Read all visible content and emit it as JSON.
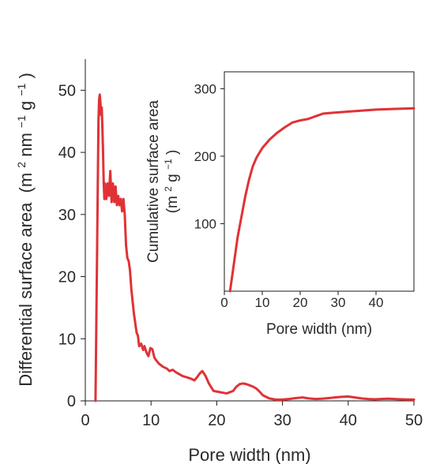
{
  "chart_data": [
    {
      "type": "line",
      "xlabel": "Pore width (nm)",
      "ylabel_lines": [
        "Differential surface area",
        "(m",
        "2",
        " nm",
        "−1",
        " g",
        "−1",
        ")"
      ],
      "xlim": [
        0,
        50
      ],
      "ylim": [
        0,
        55
      ],
      "xticks": [
        0,
        10,
        20,
        30,
        40,
        50
      ],
      "yticks": [
        0,
        10,
        20,
        30,
        40,
        50
      ],
      "grid": false,
      "line_color": "#e03236",
      "series": [
        {
          "x": [
            1.55,
            1.6,
            1.8,
            2.0,
            2.1,
            2.2,
            2.3,
            2.4,
            2.5,
            2.6,
            2.7,
            2.8,
            2.9,
            3.0,
            3.2,
            3.4,
            3.6,
            3.8,
            4.0,
            4.2,
            4.4,
            4.6,
            4.8,
            5.0,
            5.2,
            5.4,
            5.6,
            5.8,
            6.0,
            6.2,
            6.4,
            6.6,
            6.8,
            7.0,
            7.2,
            7.4,
            7.6,
            7.8,
            8.0,
            8.2,
            8.5,
            8.8,
            9.0,
            9.3,
            9.6,
            9.9,
            10.2,
            10.5,
            10.8,
            11.2,
            11.8,
            12.4,
            12.8,
            13.3,
            13.8,
            14.3,
            14.8,
            15.4,
            16.0,
            16.6,
            17.0,
            17.4,
            17.8,
            18.3,
            18.8,
            19.5,
            20.5,
            21.5,
            22.5,
            23.0,
            23.5,
            24.0,
            24.5,
            25.0,
            25.5,
            26.0,
            26.5,
            27.0,
            28.0,
            29.0,
            30.0,
            31.0,
            32.0,
            33.0,
            34.0,
            35.0,
            36.0,
            37.0,
            38.0,
            39.0,
            40.0,
            41.0,
            42.0,
            43.0,
            44.0,
            45.0,
            46.0,
            47.0,
            48.0,
            49.0,
            50.0
          ],
          "y": [
            0,
            5,
            25,
            45,
            48.5,
            49.3,
            48,
            46,
            47.2,
            44,
            40,
            35,
            32.5,
            35,
            32.5,
            35,
            33,
            37,
            32,
            35,
            32,
            34.5,
            31.5,
            33,
            31.5,
            32.5,
            30.5,
            32.5,
            30,
            25,
            23,
            22.5,
            21,
            18,
            16,
            14,
            12.5,
            11,
            10.5,
            8.8,
            9.2,
            8.2,
            8.8,
            7.8,
            7.2,
            8.5,
            8.3,
            7.0,
            6.5,
            6.0,
            5.5,
            5.2,
            4.8,
            5.0,
            4.6,
            4.3,
            4.0,
            3.8,
            3.6,
            3.3,
            3.8,
            4.4,
            4.8,
            4.0,
            2.8,
            1.6,
            1.4,
            1.2,
            1.6,
            2.3,
            2.7,
            2.8,
            2.7,
            2.5,
            2.3,
            2.0,
            1.5,
            0.9,
            0.4,
            0.2,
            0.2,
            0.3,
            0.45,
            0.55,
            0.4,
            0.3,
            0.35,
            0.45,
            0.55,
            0.65,
            0.7,
            0.55,
            0.4,
            0.3,
            0.25,
            0.3,
            0.35,
            0.3,
            0.25,
            0.22,
            0.2
          ]
        }
      ]
    },
    {
      "type": "line",
      "xlabel": "Pore width (nm)",
      "ylabel_lines": [
        "Cumulative surface area",
        "(m",
        "2",
        " g",
        "−1",
        ")"
      ],
      "xlim": [
        0,
        50
      ],
      "ylim": [
        0,
        325
      ],
      "xticks": [
        0,
        10,
        20,
        30,
        40
      ],
      "yticks": [
        100,
        200,
        300
      ],
      "grid": false,
      "line_color": "#e03236",
      "series": [
        {
          "x": [
            1.5,
            2.5,
            3.5,
            4.5,
            5.5,
            6.5,
            7.5,
            8.5,
            10.0,
            12.0,
            14.0,
            16.0,
            18.0,
            20.0,
            22.0,
            24.0,
            26.0,
            28.0,
            30.0,
            35.0,
            40.0,
            45.0,
            50.0
          ],
          "y": [
            0,
            40,
            80,
            110,
            140,
            165,
            185,
            198,
            212,
            225,
            235,
            243,
            250,
            253,
            255,
            259,
            263,
            264,
            265,
            267,
            269,
            270,
            271
          ]
        }
      ]
    }
  ]
}
